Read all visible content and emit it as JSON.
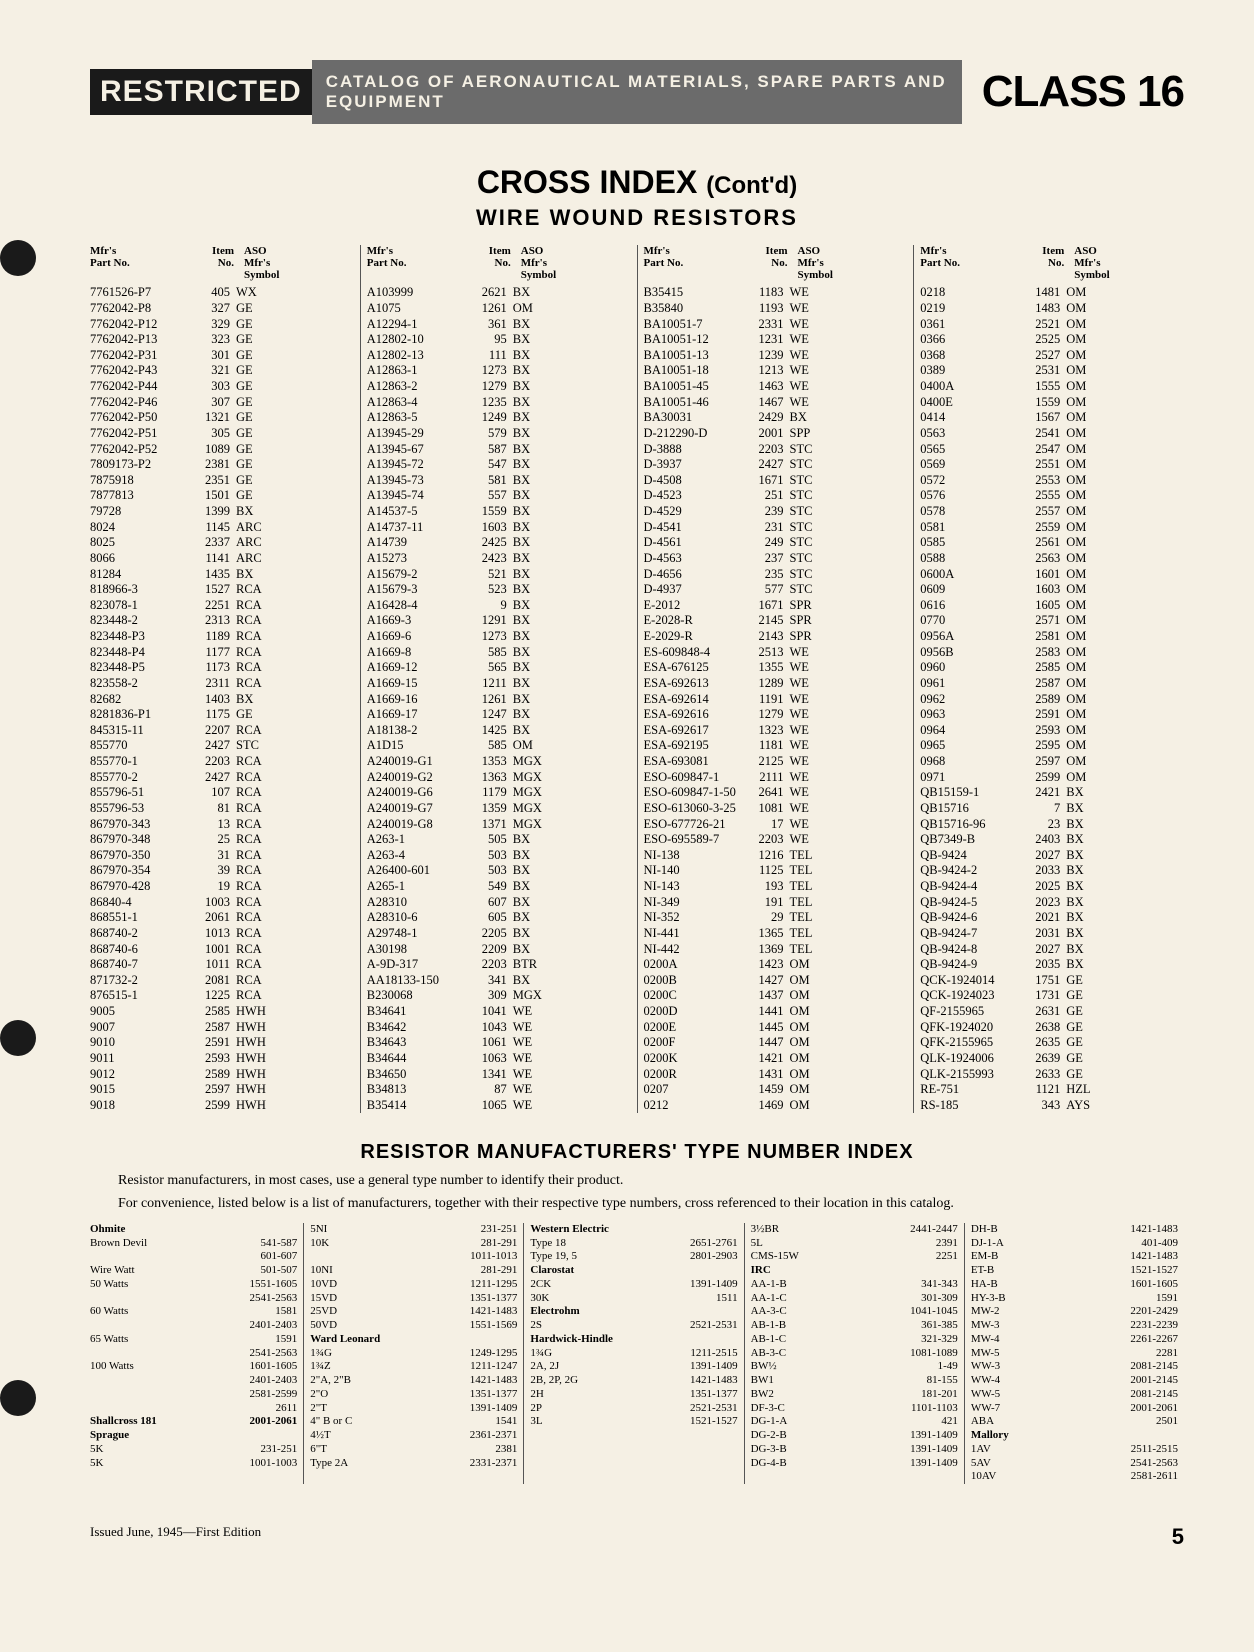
{
  "header": {
    "restricted": "RESTRICTED",
    "banner": "CATALOG OF AERONAUTICAL MATERIALS, SPARE PARTS AND EQUIPMENT",
    "class": "CLASS 16"
  },
  "title": "CROSS INDEX",
  "contd": "(Cont'd)",
  "subtitle": "WIRE WOUND RESISTORS",
  "table_headers": {
    "mfr": "Mfr's\nPart No.",
    "item": "Item\nNo.",
    "aso": "ASO\nMfr's\nSymbol"
  },
  "columns": [
    [
      [
        "7761526-P7",
        "405",
        "WX"
      ],
      [
        "7762042-P8",
        "327",
        "GE"
      ],
      [
        "7762042-P12",
        "329",
        "GE"
      ],
      [
        "7762042-P13",
        "323",
        "GE"
      ],
      [
        "7762042-P31",
        "301",
        "GE"
      ],
      [
        "7762042-P43",
        "321",
        "GE"
      ],
      [
        "7762042-P44",
        "303",
        "GE"
      ],
      [
        "7762042-P46",
        "307",
        "GE"
      ],
      [
        "7762042-P50",
        "1321",
        "GE"
      ],
      [
        "7762042-P51",
        "305",
        "GE"
      ],
      [
        "7762042-P52",
        "1089",
        "GE"
      ],
      [
        "7809173-P2",
        "2381",
        "GE"
      ],
      [
        "7875918",
        "2351",
        "GE"
      ],
      [
        "7877813",
        "1501",
        "GE"
      ],
      [
        "79728",
        "1399",
        "BX"
      ],
      [
        "8024",
        "1145",
        "ARC"
      ],
      [
        "8025",
        "2337",
        "ARC"
      ],
      [
        "8066",
        "1141",
        "ARC"
      ],
      [
        "81284",
        "1435",
        "BX"
      ],
      [
        "818966-3",
        "1527",
        "RCA"
      ],
      [
        "823078-1",
        "2251",
        "RCA"
      ],
      [
        "823448-2",
        "2313",
        "RCA"
      ],
      [
        "823448-P3",
        "1189",
        "RCA"
      ],
      [
        "823448-P4",
        "1177",
        "RCA"
      ],
      [
        "823448-P5",
        "1173",
        "RCA"
      ],
      [
        "823558-2",
        "2311",
        "RCA"
      ],
      [
        "82682",
        "1403",
        "BX"
      ],
      [
        "8281836-P1",
        "1175",
        "GE"
      ],
      [
        "845315-11",
        "2207",
        "RCA"
      ],
      [
        "855770",
        "2427",
        "STC"
      ],
      [
        "855770-1",
        "2203",
        "RCA"
      ],
      [
        "855770-2",
        "2427",
        "RCA"
      ],
      [
        "855796-51",
        "107",
        "RCA"
      ],
      [
        "855796-53",
        "81",
        "RCA"
      ],
      [
        "867970-343",
        "13",
        "RCA"
      ],
      [
        "867970-348",
        "25",
        "RCA"
      ],
      [
        "867970-350",
        "31",
        "RCA"
      ],
      [
        "867970-354",
        "39",
        "RCA"
      ],
      [
        "867970-428",
        "19",
        "RCA"
      ],
      [
        "86840-4",
        "1003",
        "RCA"
      ],
      [
        "868551-1",
        "2061",
        "RCA"
      ],
      [
        "868740-2",
        "1013",
        "RCA"
      ],
      [
        "868740-6",
        "1001",
        "RCA"
      ],
      [
        "868740-7",
        "1011",
        "RCA"
      ],
      [
        "871732-2",
        "2081",
        "RCA"
      ],
      [
        "876515-1",
        "1225",
        "RCA"
      ],
      [
        "9005",
        "2585",
        "HWH"
      ],
      [
        "9007",
        "2587",
        "HWH"
      ],
      [
        "9010",
        "2591",
        "HWH"
      ],
      [
        "9011",
        "2593",
        "HWH"
      ],
      [
        "9012",
        "2589",
        "HWH"
      ],
      [
        "9015",
        "2597",
        "HWH"
      ],
      [
        "9018",
        "2599",
        "HWH"
      ]
    ],
    [
      [
        "A103999",
        "2621",
        "BX"
      ],
      [
        "A1075",
        "1261",
        "OM"
      ],
      [
        "A12294-1",
        "361",
        "BX"
      ],
      [
        "A12802-10",
        "95",
        "BX"
      ],
      [
        "A12802-13",
        "111",
        "BX"
      ],
      [
        "A12863-1",
        "1273",
        "BX"
      ],
      [
        "A12863-2",
        "1279",
        "BX"
      ],
      [
        "A12863-4",
        "1235",
        "BX"
      ],
      [
        "A12863-5",
        "1249",
        "BX"
      ],
      [
        "A13945-29",
        "579",
        "BX"
      ],
      [
        "A13945-67",
        "587",
        "BX"
      ],
      [
        "A13945-72",
        "547",
        "BX"
      ],
      [
        "A13945-73",
        "581",
        "BX"
      ],
      [
        "A13945-74",
        "557",
        "BX"
      ],
      [
        "A14537-5",
        "1559",
        "BX"
      ],
      [
        "A14737-11",
        "1603",
        "BX"
      ],
      [
        "A14739",
        "2425",
        "BX"
      ],
      [
        "A15273",
        "2423",
        "BX"
      ],
      [
        "A15679-2",
        "521",
        "BX"
      ],
      [
        "A15679-3",
        "523",
        "BX"
      ],
      [
        "A16428-4",
        "9",
        "BX"
      ],
      [
        "A1669-3",
        "1291",
        "BX"
      ],
      [
        "A1669-6",
        "1273",
        "BX"
      ],
      [
        "A1669-8",
        "585",
        "BX"
      ],
      [
        "A1669-12",
        "565",
        "BX"
      ],
      [
        "A1669-15",
        "1211",
        "BX"
      ],
      [
        "A1669-16",
        "1261",
        "BX"
      ],
      [
        "A1669-17",
        "1247",
        "BX"
      ],
      [
        "A18138-2",
        "1425",
        "BX"
      ],
      [
        "A1D15",
        "585",
        "OM"
      ],
      [
        "A240019-G1",
        "1353",
        "MGX"
      ],
      [
        "A240019-G2",
        "1363",
        "MGX"
      ],
      [
        "A240019-G6",
        "1179",
        "MGX"
      ],
      [
        "A240019-G7",
        "1359",
        "MGX"
      ],
      [
        "A240019-G8",
        "1371",
        "MGX"
      ],
      [
        "A263-1",
        "505",
        "BX"
      ],
      [
        "A263-4",
        "503",
        "BX"
      ],
      [
        "A26400-601",
        "503",
        "BX"
      ],
      [
        "A265-1",
        "549",
        "BX"
      ],
      [
        "A28310",
        "607",
        "BX"
      ],
      [
        "A28310-6",
        "605",
        "BX"
      ],
      [
        "A29748-1",
        "2205",
        "BX"
      ],
      [
        "A30198",
        "2209",
        "BX"
      ],
      [
        "A-9D-317",
        "2203",
        "BTR"
      ],
      [
        "AA18133-150",
        "341",
        "BX"
      ],
      [
        "B230068",
        "309",
        "MGX"
      ],
      [
        "B34641",
        "1041",
        "WE"
      ],
      [
        "B34642",
        "1043",
        "WE"
      ],
      [
        "B34643",
        "1061",
        "WE"
      ],
      [
        "B34644",
        "1063",
        "WE"
      ],
      [
        "B34650",
        "1341",
        "WE"
      ],
      [
        "B34813",
        "87",
        "WE"
      ],
      [
        "B35414",
        "1065",
        "WE"
      ]
    ],
    [
      [
        "B35415",
        "1183",
        "WE"
      ],
      [
        "B35840",
        "1193",
        "WE"
      ],
      [
        "BA10051-7",
        "2331",
        "WE"
      ],
      [
        "BA10051-12",
        "1231",
        "WE"
      ],
      [
        "BA10051-13",
        "1239",
        "WE"
      ],
      [
        "BA10051-18",
        "1213",
        "WE"
      ],
      [
        "BA10051-45",
        "1463",
        "WE"
      ],
      [
        "BA10051-46",
        "1467",
        "WE"
      ],
      [
        "BA30031",
        "2429",
        "BX"
      ],
      [
        "D-212290-D",
        "2001",
        "SPP"
      ],
      [
        "D-3888",
        "2203",
        "STC"
      ],
      [
        "D-3937",
        "2427",
        "STC"
      ],
      [
        "D-4508",
        "1671",
        "STC"
      ],
      [
        "D-4523",
        "251",
        "STC"
      ],
      [
        "D-4529",
        "239",
        "STC"
      ],
      [
        "D-4541",
        "231",
        "STC"
      ],
      [
        "D-4561",
        "249",
        "STC"
      ],
      [
        "D-4563",
        "237",
        "STC"
      ],
      [
        "D-4656",
        "235",
        "STC"
      ],
      [
        "D-4937",
        "577",
        "STC"
      ],
      [
        "E-2012",
        "1671",
        "SPR"
      ],
      [
        "E-2028-R",
        "2145",
        "SPR"
      ],
      [
        "E-2029-R",
        "2143",
        "SPR"
      ],
      [
        "ES-609848-4",
        "2513",
        "WE"
      ],
      [
        "ESA-676125",
        "1355",
        "WE"
      ],
      [
        "ESA-692613",
        "1289",
        "WE"
      ],
      [
        "ESA-692614",
        "1191",
        "WE"
      ],
      [
        "ESA-692616",
        "1279",
        "WE"
      ],
      [
        "ESA-692617",
        "1323",
        "WE"
      ],
      [
        "ESA-692195",
        "1181",
        "WE"
      ],
      [
        "ESA-693081",
        "2125",
        "WE"
      ],
      [
        "ESO-609847-1",
        "2111",
        "WE"
      ],
      [
        "ESO-609847-1-50",
        "2641",
        "WE"
      ],
      [
        "ESO-613060-3-25",
        "1081",
        "WE"
      ],
      [
        "ESO-677726-21",
        "17",
        "WE"
      ],
      [
        "ESO-695589-7",
        "2203",
        "WE"
      ],
      [
        "NI-138",
        "1216",
        "TEL"
      ],
      [
        "NI-140",
        "1125",
        "TEL"
      ],
      [
        "NI-143",
        "193",
        "TEL"
      ],
      [
        "NI-349",
        "191",
        "TEL"
      ],
      [
        "NI-352",
        "29",
        "TEL"
      ],
      [
        "NI-441",
        "1365",
        "TEL"
      ],
      [
        "NI-442",
        "1369",
        "TEL"
      ],
      [
        "0200A",
        "1423",
        "OM"
      ],
      [
        "0200B",
        "1427",
        "OM"
      ],
      [
        "0200C",
        "1437",
        "OM"
      ],
      [
        "0200D",
        "1441",
        "OM"
      ],
      [
        "0200E",
        "1445",
        "OM"
      ],
      [
        "0200F",
        "1447",
        "OM"
      ],
      [
        "0200K",
        "1421",
        "OM"
      ],
      [
        "0200R",
        "1431",
        "OM"
      ],
      [
        "0207",
        "1459",
        "OM"
      ],
      [
        "0212",
        "1469",
        "OM"
      ]
    ],
    [
      [
        "0218",
        "1481",
        "OM"
      ],
      [
        "0219",
        "1483",
        "OM"
      ],
      [
        "0361",
        "2521",
        "OM"
      ],
      [
        "0366",
        "2525",
        "OM"
      ],
      [
        "0368",
        "2527",
        "OM"
      ],
      [
        "0389",
        "2531",
        "OM"
      ],
      [
        "0400A",
        "1555",
        "OM"
      ],
      [
        "0400E",
        "1559",
        "OM"
      ],
      [
        "0414",
        "1567",
        "OM"
      ],
      [
        "0563",
        "2541",
        "OM"
      ],
      [
        "0565",
        "2547",
        "OM"
      ],
      [
        "0569",
        "2551",
        "OM"
      ],
      [
        "0572",
        "2553",
        "OM"
      ],
      [
        "0576",
        "2555",
        "OM"
      ],
      [
        "0578",
        "2557",
        "OM"
      ],
      [
        "0581",
        "2559",
        "OM"
      ],
      [
        "0585",
        "2561",
        "OM"
      ],
      [
        "0588",
        "2563",
        "OM"
      ],
      [
        "0600A",
        "1601",
        "OM"
      ],
      [
        "0609",
        "1603",
        "OM"
      ],
      [
        "0616",
        "1605",
        "OM"
      ],
      [
        "0770",
        "2571",
        "OM"
      ],
      [
        "0956A",
        "2581",
        "OM"
      ],
      [
        "0956B",
        "2583",
        "OM"
      ],
      [
        "0960",
        "2585",
        "OM"
      ],
      [
        "0961",
        "2587",
        "OM"
      ],
      [
        "0962",
        "2589",
        "OM"
      ],
      [
        "0963",
        "2591",
        "OM"
      ],
      [
        "0964",
        "2593",
        "OM"
      ],
      [
        "0965",
        "2595",
        "OM"
      ],
      [
        "0968",
        "2597",
        "OM"
      ],
      [
        "0971",
        "2599",
        "OM"
      ],
      [
        "QB15159-1",
        "2421",
        "BX"
      ],
      [
        "QB15716",
        "7",
        "BX"
      ],
      [
        "QB15716-96",
        "23",
        "BX"
      ],
      [
        "QB7349-B",
        "2403",
        "BX"
      ],
      [
        "QB-9424",
        "2027",
        "BX"
      ],
      [
        "QB-9424-2",
        "2033",
        "BX"
      ],
      [
        "QB-9424-4",
        "2025",
        "BX"
      ],
      [
        "QB-9424-5",
        "2023",
        "BX"
      ],
      [
        "QB-9424-6",
        "2021",
        "BX"
      ],
      [
        "QB-9424-7",
        "2031",
        "BX"
      ],
      [
        "QB-9424-8",
        "2027",
        "BX"
      ],
      [
        "QB-9424-9",
        "2035",
        "BX"
      ],
      [
        "QCK-1924014",
        "1751",
        "GE"
      ],
      [
        "QCK-1924023",
        "1731",
        "GE"
      ],
      [
        "QF-2155965",
        "2631",
        "GE"
      ],
      [
        "QFK-1924020",
        "2638",
        "GE"
      ],
      [
        "QFK-2155965",
        "2635",
        "GE"
      ],
      [
        "QLK-1924006",
        "2639",
        "GE"
      ],
      [
        "QLK-2155993",
        "2633",
        "GE"
      ],
      [
        "RE-751",
        "1121",
        "HZL"
      ],
      [
        "RS-185",
        "343",
        "AYS"
      ]
    ]
  ],
  "mfr_index_title": "RESISTOR MANUFACTURERS' TYPE NUMBER INDEX",
  "intro1": "Resistor manufacturers, in most cases, use a general type number to identify their product.",
  "intro2": "For convenience, listed below is a list of manufacturers, together with their respective type numbers, cross referenced to their location in this catalog.",
  "mfr_cols": [
    [
      [
        "Ohmite",
        "",
        true
      ],
      [
        "Brown Devil",
        "541-587"
      ],
      [
        "",
        "601-607"
      ],
      [
        "Wire Watt",
        "501-507"
      ],
      [
        "50 Watts",
        "1551-1605"
      ],
      [
        "",
        "2541-2563"
      ],
      [
        "60 Watts",
        "1581"
      ],
      [
        "",
        "2401-2403"
      ],
      [
        "65 Watts",
        "1591"
      ],
      [
        "",
        "2541-2563"
      ],
      [
        "100 Watts",
        "1601-1605"
      ],
      [
        "",
        "2401-2403"
      ],
      [
        "",
        "2581-2599"
      ],
      [
        "",
        "2611"
      ],
      [
        "Shallcross 181",
        "2001-2061",
        true
      ],
      [
        "Sprague",
        "",
        true
      ],
      [
        "5K",
        "231-251"
      ],
      [
        "5K",
        "1001-1003"
      ]
    ],
    [
      [
        "5NI",
        "231-251"
      ],
      [
        "10K",
        "281-291"
      ],
      [
        "",
        "1011-1013"
      ],
      [
        "10NI",
        "281-291"
      ],
      [
        "10VD",
        "1211-1295"
      ],
      [
        "15VD",
        "1351-1377"
      ],
      [
        "25VD",
        "1421-1483"
      ],
      [
        "50VD",
        "1551-1569"
      ],
      [
        "",
        "",
        false
      ],
      [
        "Ward Leonard",
        "",
        true
      ],
      [
        "1¾G",
        "1249-1295"
      ],
      [
        "1¾Z",
        "1211-1247"
      ],
      [
        "2\"A, 2\"B",
        "1421-1483"
      ],
      [
        "2\"O",
        "1351-1377"
      ],
      [
        "2\"T",
        "1391-1409"
      ],
      [
        "4\"  B or C",
        "1541"
      ],
      [
        "4½T",
        "2361-2371"
      ],
      [
        "6\"T",
        "2381"
      ],
      [
        "Type 2A",
        "2331-2371"
      ]
    ],
    [
      [
        "Western Electric",
        "",
        true
      ],
      [
        "Type 18",
        "2651-2761"
      ],
      [
        "Type 19, 5",
        "2801-2903"
      ],
      [
        "",
        "",
        false
      ],
      [
        "Clarostat",
        "",
        true
      ],
      [
        "2CK",
        "1391-1409"
      ],
      [
        "30K",
        "1511"
      ],
      [
        "",
        "",
        false
      ],
      [
        "Electrohm",
        "",
        true
      ],
      [
        "2S",
        "2521-2531"
      ],
      [
        "",
        "",
        false
      ],
      [
        "Hardwick-Hindle",
        "",
        true
      ],
      [
        "1¾G",
        "1211-2515"
      ],
      [
        "2A, 2J",
        "1391-1409"
      ],
      [
        "2B, 2P, 2G",
        "1421-1483"
      ],
      [
        "2H",
        "1351-1377"
      ],
      [
        "2P",
        "2521-2531"
      ],
      [
        "3L",
        "1521-1527"
      ]
    ],
    [
      [
        "3½BR",
        "2441-2447"
      ],
      [
        "5L",
        "2391"
      ],
      [
        "CMS-15W",
        "2251"
      ],
      [
        "",
        "",
        false
      ],
      [
        "IRC",
        "",
        true
      ],
      [
        "AA-1-B",
        "341-343"
      ],
      [
        "AA-1-C",
        "301-309"
      ],
      [
        "AA-3-C",
        "1041-1045"
      ],
      [
        "AB-1-B",
        "361-385"
      ],
      [
        "AB-1-C",
        "321-329"
      ],
      [
        "AB-3-C",
        "1081-1089"
      ],
      [
        "BW½",
        "1-49"
      ],
      [
        "BW1",
        "81-155"
      ],
      [
        "BW2",
        "181-201"
      ],
      [
        "DF-3-C",
        "1101-1103"
      ],
      [
        "DG-1-A",
        "421"
      ],
      [
        "DG-2-B",
        "1391-1409"
      ],
      [
        "DG-3-B",
        "1391-1409"
      ],
      [
        "DG-4-B",
        "1391-1409"
      ]
    ],
    [
      [
        "DH-B",
        "1421-1483"
      ],
      [
        "DJ-1-A",
        "401-409"
      ],
      [
        "EM-B",
        "1421-1483"
      ],
      [
        "ET-B",
        "1521-1527"
      ],
      [
        "HA-B",
        "1601-1605"
      ],
      [
        "HY-3-B",
        "1591"
      ],
      [
        "MW-2",
        "2201-2429"
      ],
      [
        "MW-3",
        "2231-2239"
      ],
      [
        "MW-4",
        "2261-2267"
      ],
      [
        "MW-5",
        "2281"
      ],
      [
        "WW-3",
        "2081-2145"
      ],
      [
        "WW-4",
        "2001-2145"
      ],
      [
        "WW-5",
        "2081-2145"
      ],
      [
        "WW-7",
        "2001-2061"
      ],
      [
        "ABA",
        "2501"
      ],
      [
        "Mallory",
        "",
        true
      ],
      [
        "1AV",
        "2511-2515"
      ],
      [
        "5AV",
        "2541-2563"
      ],
      [
        "10AV",
        "2581-2611"
      ]
    ]
  ],
  "footer": {
    "left": "Issued June, 1945—First Edition",
    "page": "5"
  }
}
